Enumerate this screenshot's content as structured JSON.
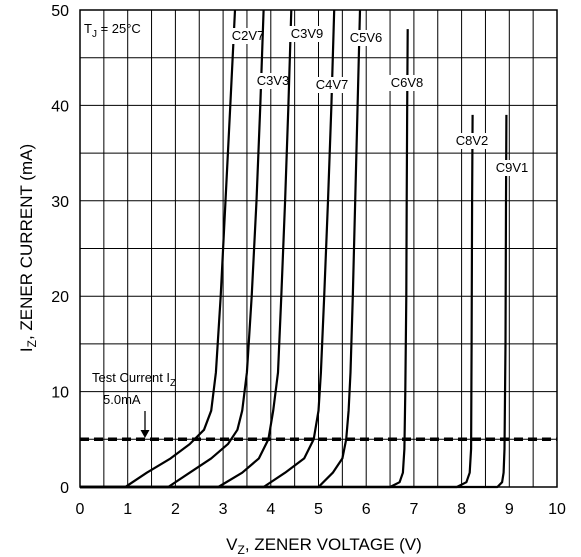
{
  "chart_data": {
    "type": "line",
    "title": "",
    "xlabel": "V_Z, ZENER VOLTAGE (V)",
    "ylabel": "I_Z, ZENER CURRENT (mA)",
    "xlim": [
      0,
      10
    ],
    "ylim": [
      0,
      50
    ],
    "xticks": [
      "0",
      "1",
      "2",
      "3",
      "4",
      "5",
      "6",
      "7",
      "8",
      "9",
      "10"
    ],
    "yticks": [
      "0",
      "10",
      "20",
      "30",
      "40",
      "50"
    ],
    "grid": true,
    "condition_label": "T_J = 25°C",
    "test_current": {
      "label": "Test Current I_Z",
      "value_label": "5.0mA",
      "value": 5.0
    },
    "series": [
      {
        "name": "C2V7",
        "x": [
          0.95,
          1.4,
          1.9,
          2.3,
          2.6,
          2.75,
          2.85,
          2.95,
          3.05,
          3.15,
          3.25
        ],
        "y": [
          0,
          1.5,
          3,
          4.5,
          6,
          8,
          12,
          20,
          30,
          40,
          50
        ]
      },
      {
        "name": "C3V3",
        "x": [
          1.85,
          2.3,
          2.75,
          3.1,
          3.3,
          3.4,
          3.5,
          3.6,
          3.7,
          3.78,
          3.85
        ],
        "y": [
          0,
          1.5,
          3,
          4.5,
          6,
          8,
          12,
          20,
          30,
          40,
          50
        ]
      },
      {
        "name": "C3V9",
        "x": [
          2.9,
          3.4,
          3.75,
          3.95,
          4.05,
          4.15,
          4.22,
          4.3,
          4.37,
          4.43
        ],
        "y": [
          0,
          1.5,
          3,
          5,
          8,
          12,
          20,
          30,
          40,
          50
        ]
      },
      {
        "name": "C4V7",
        "x": [
          3.85,
          4.3,
          4.7,
          4.9,
          5.0,
          5.05,
          5.12,
          5.2,
          5.27,
          5.33
        ],
        "y": [
          0,
          1.5,
          3,
          5,
          8,
          12,
          20,
          30,
          40,
          50
        ]
      },
      {
        "name": "C5V6",
        "x": [
          5.0,
          5.3,
          5.5,
          5.58,
          5.63,
          5.67,
          5.72,
          5.77,
          5.82,
          5.87
        ],
        "y": [
          0,
          1.5,
          3,
          5,
          8,
          12,
          20,
          30,
          40,
          50
        ]
      },
      {
        "name": "C6V8",
        "x": [
          6.5,
          6.7,
          6.77,
          6.8,
          6.82,
          6.84,
          6.85,
          6.86,
          6.87
        ],
        "y": [
          0,
          0.5,
          1.5,
          4,
          10,
          20,
          30,
          40,
          48
        ]
      },
      {
        "name": "C8V2",
        "x": [
          7.9,
          8.1,
          8.17,
          8.2,
          8.21,
          8.22,
          8.23
        ],
        "y": [
          0,
          0.5,
          1.5,
          4,
          15,
          30,
          39
        ]
      },
      {
        "name": "C9V1",
        "x": [
          8.75,
          8.85,
          8.88,
          8.9,
          8.92,
          8.93,
          8.94
        ],
        "y": [
          0,
          0.5,
          1.5,
          4,
          15,
          30,
          39
        ]
      }
    ]
  }
}
